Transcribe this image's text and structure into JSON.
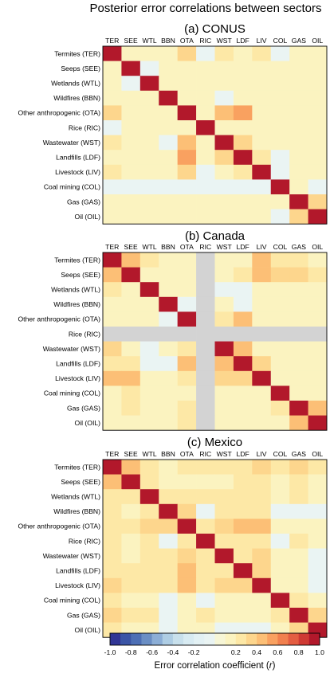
{
  "title": "Posterior error correlations between sectors",
  "chart_data": {
    "type": "heatmap",
    "title": "Posterior error correlations between sectors",
    "row_labels": [
      "Termites (TER)",
      "Seeps (SEE)",
      "Wetlands (WTL)",
      "Wildfires (BBN)",
      "Other anthropogenic (OTA)",
      "Rice (RIC)",
      "Wastewater (WST)",
      "Landfills (LDF)",
      "Livestock (LIV)",
      "Coal mining (COL)",
      "Gas (GAS)",
      "Oil (OIL)"
    ],
    "col_labels": [
      "TER",
      "SEE",
      "WTL",
      "BBN",
      "OTA",
      "RIC",
      "WST",
      "LDF",
      "LIV",
      "COL",
      "GAS",
      "OIL"
    ],
    "panels": [
      {
        "title": "(a) CONUS",
        "values": [
          [
            1.0,
            0.1,
            0.1,
            0.1,
            0.3,
            -0.1,
            0.2,
            0.1,
            0.2,
            -0.1,
            0.1,
            0.1
          ],
          [
            0.1,
            1.0,
            -0.1,
            0.1,
            0.1,
            0.1,
            0.1,
            0.1,
            0.1,
            0.1,
            0.1,
            0.1
          ],
          [
            0.1,
            -0.1,
            1.0,
            0.1,
            0.1,
            0.1,
            0.1,
            0.1,
            0.1,
            0.1,
            0.1,
            0.1
          ],
          [
            0.1,
            0.1,
            0.1,
            1.0,
            0.1,
            0.1,
            -0.1,
            0.1,
            0.1,
            0.1,
            0.1,
            0.1
          ],
          [
            0.3,
            0.1,
            0.1,
            0.1,
            1.0,
            0.1,
            0.4,
            0.5,
            0.1,
            0.1,
            0.1,
            0.1
          ],
          [
            -0.1,
            0.1,
            0.1,
            0.1,
            0.1,
            1.0,
            0.1,
            0.1,
            0.1,
            0.1,
            0.1,
            0.1
          ],
          [
            0.2,
            0.1,
            0.1,
            -0.1,
            0.4,
            0.1,
            1.0,
            0.3,
            0.1,
            0.1,
            0.1,
            0.1
          ],
          [
            0.1,
            0.1,
            0.1,
            0.1,
            0.5,
            0.1,
            0.3,
            1.0,
            0.2,
            -0.1,
            0.1,
            0.1
          ],
          [
            0.2,
            0.1,
            0.1,
            0.1,
            0.3,
            -0.1,
            0.1,
            0.2,
            1.0,
            -0.1,
            0.1,
            0.1
          ],
          [
            -0.1,
            -0.1,
            -0.1,
            -0.1,
            -0.1,
            -0.1,
            -0.1,
            -0.1,
            -0.1,
            1.0,
            0.1,
            -0.1
          ],
          [
            0.1,
            0.1,
            0.1,
            0.1,
            0.1,
            0.1,
            0.1,
            0.1,
            0.1,
            0.1,
            1.0,
            0.3
          ],
          [
            0.1,
            0.1,
            0.1,
            0.1,
            0.1,
            0.1,
            0.1,
            0.1,
            0.1,
            -0.1,
            0.3,
            1.0
          ]
        ]
      },
      {
        "title": "(b) Canada",
        "values": [
          [
            1.0,
            0.4,
            0.2,
            0.1,
            0.1,
            null,
            0.1,
            0.1,
            0.4,
            0.2,
            0.2,
            0.1
          ],
          [
            0.4,
            1.0,
            0.1,
            0.1,
            0.1,
            null,
            0.1,
            0.2,
            0.4,
            0.3,
            0.3,
            0.2
          ],
          [
            0.2,
            0.1,
            1.0,
            0.1,
            0.1,
            null,
            -0.1,
            -0.1,
            0.1,
            0.1,
            0.1,
            0.1
          ],
          [
            0.1,
            0.1,
            0.1,
            1.0,
            -0.1,
            null,
            0.1,
            -0.1,
            0.1,
            0.1,
            0.1,
            0.1
          ],
          [
            0.1,
            0.1,
            0.1,
            -0.1,
            1.0,
            null,
            0.2,
            0.4,
            0.1,
            0.1,
            0.1,
            0.1
          ],
          [
            null,
            null,
            null,
            null,
            null,
            null,
            null,
            null,
            null,
            null,
            null,
            null
          ],
          [
            0.3,
            0.1,
            -0.1,
            0.1,
            0.2,
            null,
            1.0,
            0.4,
            0.1,
            0.1,
            0.1,
            0.1
          ],
          [
            0.2,
            0.2,
            -0.1,
            -0.1,
            0.4,
            null,
            0.4,
            1.0,
            0.3,
            0.1,
            0.1,
            0.1
          ],
          [
            0.4,
            0.4,
            0.1,
            0.1,
            0.2,
            null,
            0.3,
            0.3,
            1.0,
            0.1,
            0.1,
            0.1
          ],
          [
            0.1,
            0.2,
            0.1,
            0.1,
            0.1,
            null,
            0.1,
            0.1,
            0.1,
            1.0,
            0.1,
            0.1
          ],
          [
            0.1,
            0.2,
            0.1,
            0.1,
            0.2,
            null,
            0.1,
            0.1,
            0.1,
            0.2,
            1.0,
            0.4
          ],
          [
            0.1,
            0.1,
            0.1,
            0.1,
            0.2,
            null,
            0.1,
            0.1,
            0.1,
            0.1,
            0.4,
            1.0
          ]
        ]
      },
      {
        "title": "(c) Mexico",
        "values": [
          [
            1.0,
            0.4,
            0.2,
            0.1,
            0.2,
            0.2,
            0.2,
            0.2,
            0.3,
            0.2,
            0.3,
            0.2
          ],
          [
            0.4,
            1.0,
            0.2,
            0.1,
            0.1,
            0.1,
            0.1,
            0.2,
            0.2,
            0.1,
            0.2,
            0.1
          ],
          [
            0.2,
            0.2,
            1.0,
            0.2,
            0.2,
            0.2,
            0.2,
            0.2,
            0.2,
            0.1,
            0.2,
            0.1
          ],
          [
            0.2,
            0.1,
            0.2,
            1.0,
            0.3,
            -0.1,
            0.2,
            0.2,
            0.2,
            -0.1,
            -0.1,
            -0.1
          ],
          [
            0.2,
            0.2,
            0.3,
            0.3,
            1.0,
            0.2,
            0.3,
            0.4,
            0.4,
            0.1,
            0.1,
            0.1
          ],
          [
            0.2,
            0.1,
            0.2,
            -0.1,
            0.2,
            1.0,
            0.2,
            0.2,
            0.2,
            -0.1,
            0.2,
            0.1
          ],
          [
            0.2,
            0.1,
            0.2,
            0.2,
            0.3,
            0.2,
            1.0,
            0.2,
            0.3,
            0.1,
            0.1,
            -0.1
          ],
          [
            0.2,
            0.2,
            0.2,
            0.2,
            0.4,
            0.2,
            0.2,
            1.0,
            0.3,
            0.1,
            0.1,
            -0.1
          ],
          [
            0.3,
            0.2,
            0.2,
            0.2,
            0.4,
            0.2,
            0.3,
            0.3,
            1.0,
            0.1,
            0.1,
            -0.1
          ],
          [
            0.2,
            0.1,
            0.1,
            -0.1,
            0.1,
            -0.1,
            0.1,
            0.1,
            0.1,
            1.0,
            0.2,
            0.1
          ],
          [
            0.3,
            0.2,
            0.2,
            -0.1,
            0.1,
            0.2,
            0.1,
            0.1,
            0.1,
            0.2,
            1.0,
            0.3
          ],
          [
            0.2,
            0.1,
            0.1,
            -0.1,
            0.1,
            0.1,
            -0.1,
            -0.1,
            -0.1,
            0.1,
            0.3,
            1.0
          ]
        ]
      }
    ],
    "colorbar": {
      "label": "Error correlation coefficient (",
      "label_var": "r",
      "label_close": ")",
      "range": [
        -1.0,
        1.0
      ],
      "step": 0.1,
      "ticks": [
        -1.0,
        -0.8,
        -0.6,
        -0.4,
        -0.2,
        0.2,
        0.4,
        0.6,
        0.8,
        1.0
      ],
      "tick_labels": [
        "-1.0",
        "-0.8",
        "-0.6",
        "-0.4",
        "-0.2",
        "0.2",
        "0.4",
        "0.6",
        "0.8",
        "1.0"
      ],
      "colors": [
        "#313695",
        "#3b55a6",
        "#4d6fb5",
        "#6a8ec4",
        "#8caed6",
        "#aecde4",
        "#c8e0ec",
        "#d8ebf2",
        "#e3f1f4",
        "#eaf4f3",
        "#f7f6d6",
        "#fbf3c0",
        "#fde8a6",
        "#fdd68d",
        "#fcbf76",
        "#f9a160",
        "#f1804e",
        "#e45d41",
        "#cf3a34",
        "#b2182b"
      ],
      "missing_color": "#d3d3d3"
    }
  }
}
